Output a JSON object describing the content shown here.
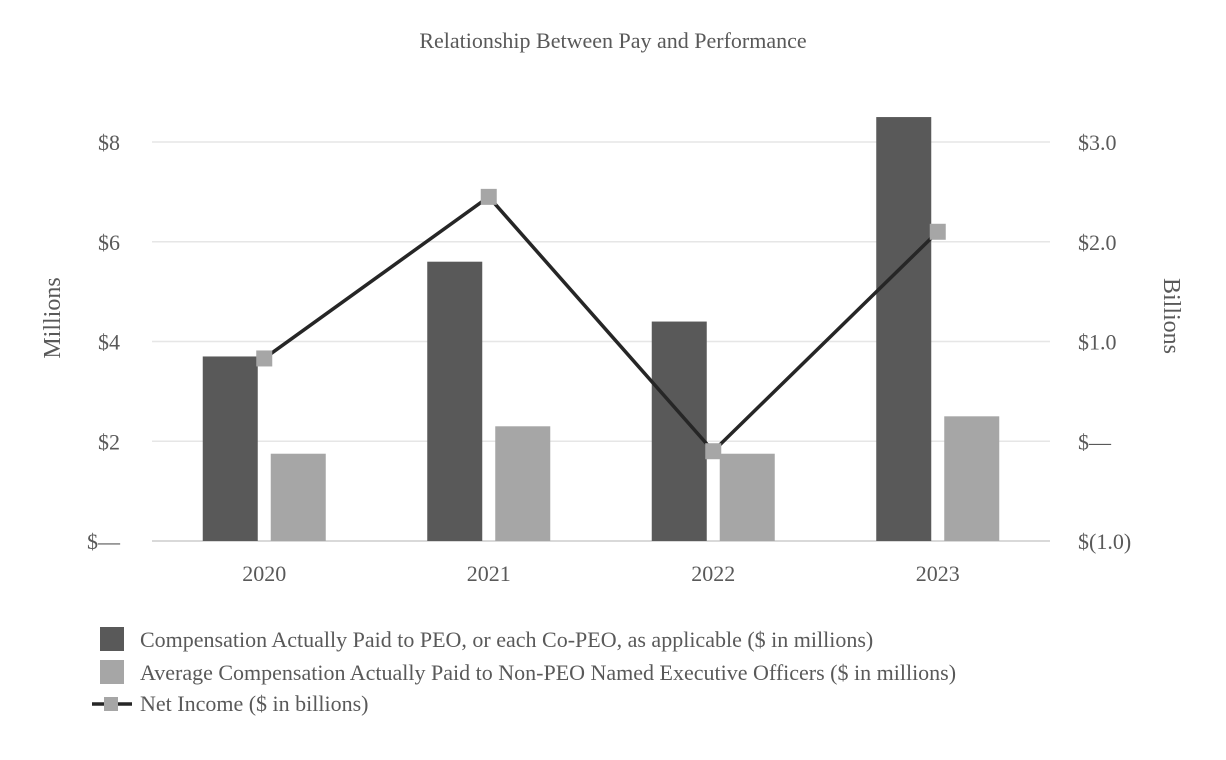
{
  "chart_data": {
    "type": "bar",
    "title": "Relationship Between Pay and Performance",
    "categories": [
      "2020",
      "2021",
      "2022",
      "2023"
    ],
    "left_axis": {
      "label": "Millions",
      "ylim": [
        0,
        8
      ],
      "ticks": [
        0,
        2,
        4,
        6,
        8
      ],
      "tick_labels": [
        "$—",
        "$2",
        "$4",
        "$6",
        "$8"
      ]
    },
    "right_axis": {
      "label": "Billions",
      "ylim": [
        -1.0,
        3.0
      ],
      "ticks": [
        -1.0,
        0,
        1.0,
        2.0,
        3.0
      ],
      "tick_labels": [
        "$(1.0)",
        "$—",
        "$1.0",
        "$2.0",
        "$3.0"
      ]
    },
    "series": [
      {
        "name": "Compensation Actually Paid to PEO, or each Co-PEO, as applicable ($ in millions)",
        "type": "bar",
        "axis": "left",
        "color": "#595959",
        "values": [
          3.7,
          5.6,
          4.4,
          8.5
        ]
      },
      {
        "name": "Average Compensation Actually Paid to Non-PEO Named Executive Officers ($ in millions)",
        "type": "bar",
        "axis": "left",
        "color": "#a6a6a6",
        "values": [
          1.75,
          2.3,
          1.75,
          2.5
        ]
      },
      {
        "name": "Net Income ($ in billions)",
        "type": "line",
        "axis": "right",
        "color": "#262626",
        "marker_color": "#a6a6a6",
        "values": [
          0.83,
          2.45,
          -0.1,
          2.1
        ]
      }
    ],
    "grid": true,
    "legend": "bottom"
  }
}
